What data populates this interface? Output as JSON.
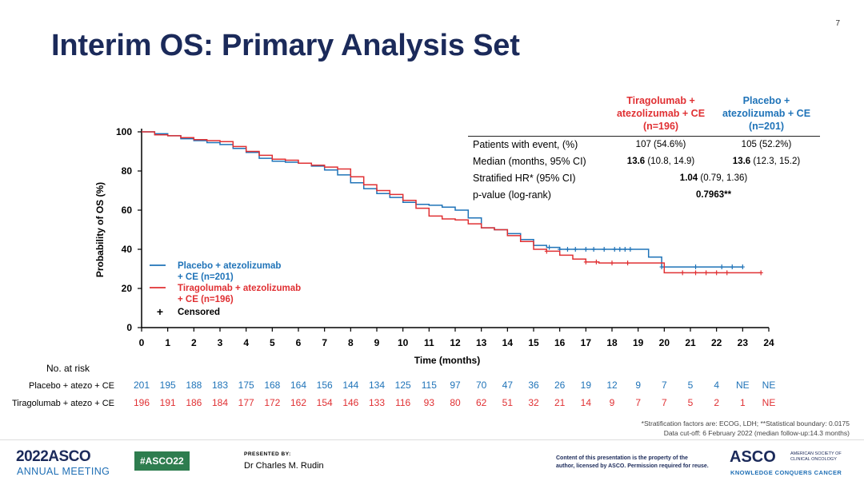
{
  "slide": {
    "number": "7",
    "title": "Interim OS: Primary Analysis Set"
  },
  "chart_data": {
    "type": "line",
    "subtype": "kaplan-meier",
    "xlabel": "Time (months)",
    "ylabel": "Probability  of OS (%)",
    "xlim": [
      0,
      24
    ],
    "ylim": [
      0,
      100
    ],
    "xticks": [
      "0",
      "1",
      "2",
      "3",
      "4",
      "5",
      "6",
      "7",
      "8",
      "9",
      "10",
      "11",
      "12",
      "13",
      "14",
      "15",
      "16",
      "17",
      "18",
      "19",
      "20",
      "21",
      "22",
      "23",
      "24"
    ],
    "yticks": [
      "0",
      "20",
      "40",
      "60",
      "80",
      "100"
    ],
    "grid": false,
    "legend_position": "bottom-left",
    "legend": {
      "censored_label": "Censored",
      "censored_symbol": "+"
    },
    "series": [
      {
        "name": "Placebo + atezolizumab + CE (n=201)",
        "legend_line1": "Placebo + atezolizumab",
        "legend_line2": "+ CE (n=201)",
        "color": "#1f73b8",
        "x": [
          0,
          0.5,
          1,
          1.5,
          2,
          2.5,
          3,
          3.5,
          4,
          4.5,
          5,
          5.5,
          6,
          6.5,
          7,
          7.5,
          8,
          8.5,
          9,
          9.5,
          10,
          10.5,
          11,
          11.5,
          12,
          12.5,
          13,
          13.5,
          14,
          14.5,
          15,
          15.5,
          16,
          16.5,
          17,
          17.5,
          18,
          18.5,
          19,
          19.4,
          19.9,
          20.5,
          21,
          21.5,
          22,
          22.5,
          23
        ],
        "y": [
          100,
          99,
          98,
          96.5,
          95.5,
          94.5,
          93.5,
          91.5,
          89.5,
          86.5,
          85,
          84.5,
          84,
          82.5,
          80.5,
          78,
          74,
          71,
          68.5,
          66.5,
          64,
          63,
          62.5,
          61.5,
          60,
          56,
          51,
          50,
          48,
          45,
          42,
          41,
          40,
          40,
          40,
          40,
          40,
          40,
          40,
          36,
          31,
          31,
          31,
          31,
          31,
          31,
          31
        ],
        "censored_x": [
          15.6,
          16,
          16.3,
          16.6,
          17,
          17.3,
          17.7,
          18.1,
          18.3,
          18.5,
          18.7,
          19.9,
          21.2,
          22.2,
          22.6,
          23
        ]
      },
      {
        "name": "Tiragolumab + atezolizumab + CE (n=196)",
        "legend_line1": "Tiragolumab + atezolizumab",
        "legend_line2": "+ CE (n=196)",
        "color": "#e03033",
        "x": [
          0,
          0.5,
          1,
          1.5,
          2,
          2.5,
          3,
          3.5,
          4,
          4.5,
          5,
          5.5,
          6,
          6.5,
          7,
          7.5,
          8,
          8.5,
          9,
          9.5,
          10,
          10.5,
          11,
          11.5,
          12,
          12.5,
          13,
          13.5,
          14,
          14.5,
          15,
          15.5,
          16,
          16.5,
          17,
          17.5,
          18,
          18.5,
          19,
          19.5,
          20,
          20.5,
          21,
          21.5,
          22,
          22.5,
          23,
          23.7
        ],
        "y": [
          100,
          98.5,
          98,
          97,
          96,
          95.5,
          95,
          92.5,
          90,
          88,
          86,
          85.5,
          84,
          83,
          82,
          81,
          77,
          73,
          70,
          68,
          65,
          61,
          57,
          55.5,
          55,
          53,
          51,
          50,
          47,
          44,
          40,
          39,
          37,
          35,
          33.5,
          33,
          33,
          33,
          33,
          33,
          28,
          28,
          28,
          28,
          28,
          28,
          28,
          28
        ],
        "censored_x": [
          15.5,
          17,
          17.4,
          18,
          18.6,
          20.7,
          21.2,
          21.6,
          22,
          22.4,
          23.7
        ]
      }
    ],
    "risk_table": {
      "heading": "No. at risk",
      "times": [
        0,
        1,
        2,
        3,
        4,
        5,
        6,
        7,
        8,
        9,
        10,
        11,
        12,
        13,
        14,
        15,
        16,
        17,
        18,
        19,
        20,
        21,
        22,
        23,
        24
      ],
      "rows": [
        {
          "label": "Placebo + atezo + CE",
          "color": "#1f73b8",
          "values": [
            "201",
            "195",
            "188",
            "183",
            "175",
            "168",
            "164",
            "156",
            "144",
            "134",
            "125",
            "115",
            "97",
            "70",
            "47",
            "36",
            "26",
            "19",
            "12",
            "9",
            "7",
            "5",
            "4",
            "NE",
            "NE"
          ]
        },
        {
          "label": "Tiragolumab + atezo + CE",
          "color": "#e03033",
          "values": [
            "196",
            "191",
            "186",
            "184",
            "177",
            "172",
            "162",
            "154",
            "146",
            "133",
            "116",
            "93",
            "80",
            "62",
            "51",
            "32",
            "21",
            "14",
            "9",
            "7",
            "7",
            "5",
            "2",
            "1",
            "NE"
          ]
        }
      ]
    }
  },
  "stats_table": {
    "col_tira": [
      "Tiragolumab +",
      "atezolizumab + CE",
      "(n=196)"
    ],
    "col_placebo": [
      "Placebo +",
      "atezolizumab + CE",
      "(n=201)"
    ],
    "rows": {
      "events": {
        "label": "Patients with event, (%)",
        "tira": "107 (54.6%)",
        "placebo": "105 (52.2%)"
      },
      "median": {
        "label": "Median (months, 95% CI)",
        "tira_bold": "13.6",
        "tira_rest": " (10.8, 14.9)",
        "placebo_bold": "13.6",
        "placebo_rest": " (12.3, 15.2)"
      },
      "hr": {
        "label": "Stratified HR* (95% CI)",
        "bold": "1.04",
        "rest": " (0.79, 1.36)"
      },
      "pvalue": {
        "label": "p-value (log-rank)",
        "bold": "0.7963**"
      }
    }
  },
  "footnotes": {
    "line1": "*Stratification factors are: ECOG, LDH; **Statistical boundary:  0.0175",
    "line2": "Data cut-off:  6 February 2022 (median follow-up:14.3  months)"
  },
  "footer": {
    "conference_year": "2022ASCO",
    "conference_sub": "ANNUAL MEETING",
    "hashtag": "#ASCO22",
    "presented_by": "PRESENTED  BY:",
    "presenter": "Dr Charles M. Rudin",
    "copyright_line1": "Content of this presentation is the property of the",
    "copyright_line2": "author, licensed by ASCO. Permission required for reuse.",
    "org_name": "ASCO",
    "org_detail_line1": "AMERICAN SOCIETY OF",
    "org_detail_line2": "CLINICAL ONCOLOGY",
    "org_tagline": "KNOWLEDGE CONQUERS CANCER"
  }
}
